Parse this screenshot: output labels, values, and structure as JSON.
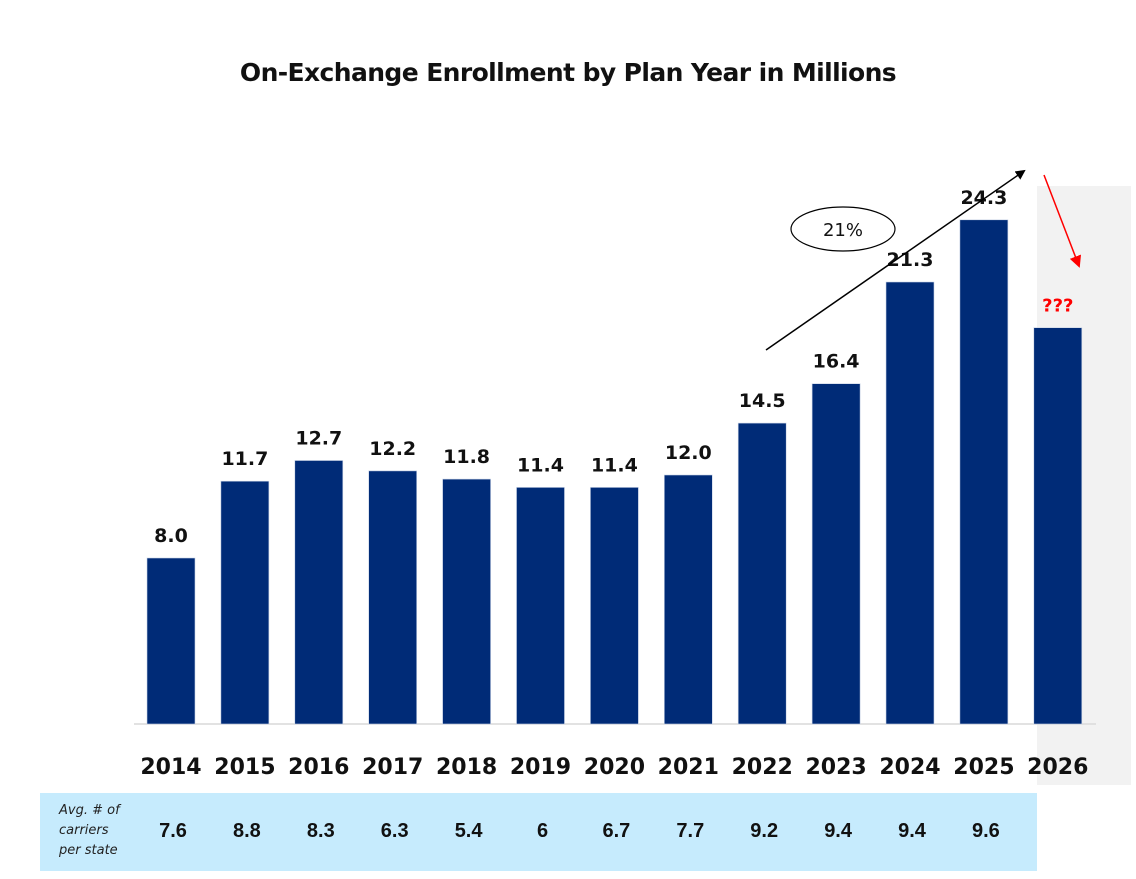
{
  "chart_data": {
    "type": "bar",
    "title": "On-Exchange Enrollment by Plan Year in Millions",
    "xlabel": "",
    "ylabel": "",
    "ylim": [
      0,
      25
    ],
    "grid": false,
    "categories": [
      "2014",
      "2015",
      "2016",
      "2017",
      "2018",
      "2019",
      "2020",
      "2021",
      "2022",
      "2023",
      "2024",
      "2025",
      "2026"
    ],
    "values": [
      8.0,
      11.7,
      12.7,
      12.2,
      11.8,
      11.4,
      11.4,
      12.0,
      14.5,
      16.4,
      21.3,
      24.3,
      19.1
    ],
    "data_labels": [
      "8.0",
      "11.7",
      "12.7",
      "12.2",
      "11.8",
      "11.4",
      "11.4",
      "12.0",
      "14.5",
      "16.4",
      "21.3",
      "24.3",
      "???"
    ],
    "highlighted_category": "2026",
    "annotations": [
      {
        "type": "growth-arrow",
        "text": "21%",
        "color": "#000000",
        "direction": "up",
        "spans": [
          "2022",
          "2025"
        ]
      },
      {
        "type": "decline-arrow",
        "text": "",
        "color": "#ff0000",
        "direction": "down",
        "target": "2026"
      }
    ],
    "colors": {
      "bar": "#002b77",
      "unknown_label": "#ff0000",
      "highlight_panel": "#f2f2f2",
      "table_bg": "#c6ebfd"
    }
  },
  "carriers_table": {
    "label": "Avg. # of carriers per state",
    "label_lines": [
      "Avg. # of",
      "carriers",
      "per state"
    ],
    "years": [
      "2014",
      "2015",
      "2016",
      "2017",
      "2018",
      "2019",
      "2020",
      "2021",
      "2022",
      "2023",
      "2024",
      "2025"
    ],
    "values": [
      "7.6",
      "8.8",
      "8.3",
      "6.3",
      "5.4",
      "6",
      "6.7",
      "7.7",
      "9.2",
      "9.4",
      "9.4",
      "9.6"
    ]
  }
}
